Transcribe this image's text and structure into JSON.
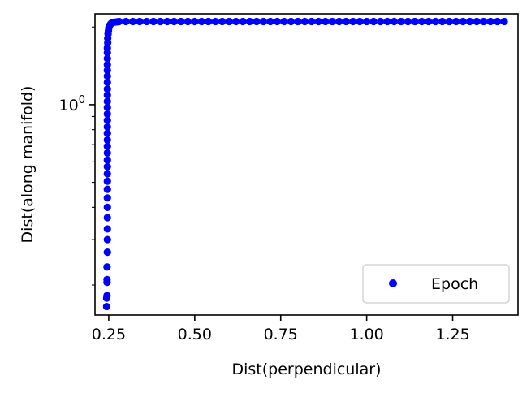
{
  "chart_data": {
    "type": "scatter",
    "xlabel": "Dist(perpendicular)",
    "ylabel": "Dist(along manifold)",
    "xlim": [
      0.21,
      1.44
    ],
    "ylim": [
      0.153,
      2.25
    ],
    "y_scale": "log",
    "x_ticks": [
      0.25,
      0.5,
      0.75,
      1.0,
      1.25
    ],
    "x_tick_labels": [
      "0.25",
      "0.50",
      "0.75",
      "1.00",
      "1.25"
    ],
    "y_major_ticks": [
      1.0
    ],
    "y_major_tick_base": "10",
    "y_major_tick_exponent": "0",
    "y_minor_ticks": [
      0.2,
      0.3,
      0.4,
      0.5,
      0.6,
      0.7,
      0.8,
      0.9,
      2.0
    ],
    "grid": false,
    "legend_position": "lower-right",
    "series": [
      {
        "name": "Epoch",
        "color": "#0000ff",
        "marker": "circle",
        "points": [
          [
            0.244,
            0.165
          ],
          [
            0.244,
            0.178
          ],
          [
            0.245,
            0.182
          ],
          [
            0.245,
            0.205
          ],
          [
            0.245,
            0.21
          ],
          [
            0.245,
            0.235
          ],
          [
            0.246,
            0.268
          ],
          [
            0.246,
            0.3
          ],
          [
            0.246,
            0.33
          ],
          [
            0.246,
            0.365
          ],
          [
            0.246,
            0.4
          ],
          [
            0.246,
            0.435
          ],
          [
            0.246,
            0.47
          ],
          [
            0.246,
            0.505
          ],
          [
            0.246,
            0.54
          ],
          [
            0.246,
            0.575
          ],
          [
            0.246,
            0.61
          ],
          [
            0.246,
            0.65
          ],
          [
            0.246,
            0.69
          ],
          [
            0.246,
            0.73
          ],
          [
            0.246,
            0.775
          ],
          [
            0.246,
            0.82
          ],
          [
            0.246,
            0.87
          ],
          [
            0.246,
            0.92
          ],
          [
            0.246,
            0.975
          ],
          [
            0.246,
            1.03
          ],
          [
            0.246,
            1.09
          ],
          [
            0.246,
            1.15
          ],
          [
            0.246,
            1.22
          ],
          [
            0.246,
            1.29
          ],
          [
            0.246,
            1.36
          ],
          [
            0.246,
            1.43
          ],
          [
            0.246,
            1.51
          ],
          [
            0.246,
            1.59
          ],
          [
            0.246,
            1.66
          ],
          [
            0.247,
            1.74
          ],
          [
            0.247,
            1.81
          ],
          [
            0.248,
            1.88
          ],
          [
            0.249,
            1.93
          ],
          [
            0.25,
            1.98
          ],
          [
            0.252,
            2.02
          ],
          [
            0.255,
            2.05
          ],
          [
            0.258,
            2.07
          ],
          [
            0.262,
            2.08
          ],
          [
            0.268,
            2.09
          ],
          [
            0.275,
            2.095
          ],
          [
            0.28,
            2.1
          ],
          [
            0.3,
            2.1
          ],
          [
            0.32,
            2.1
          ],
          [
            0.34,
            2.1
          ],
          [
            0.36,
            2.1
          ],
          [
            0.38,
            2.1
          ],
          [
            0.4,
            2.1
          ],
          [
            0.42,
            2.1
          ],
          [
            0.44,
            2.1
          ],
          [
            0.46,
            2.1
          ],
          [
            0.48,
            2.1
          ],
          [
            0.5,
            2.1
          ],
          [
            0.52,
            2.1
          ],
          [
            0.54,
            2.1
          ],
          [
            0.56,
            2.1
          ],
          [
            0.58,
            2.1
          ],
          [
            0.6,
            2.1
          ],
          [
            0.62,
            2.1
          ],
          [
            0.64,
            2.1
          ],
          [
            0.66,
            2.1
          ],
          [
            0.68,
            2.1
          ],
          [
            0.7,
            2.1
          ],
          [
            0.72,
            2.1
          ],
          [
            0.74,
            2.1
          ],
          [
            0.76,
            2.1
          ],
          [
            0.78,
            2.1
          ],
          [
            0.8,
            2.1
          ],
          [
            0.82,
            2.1
          ],
          [
            0.84,
            2.1
          ],
          [
            0.86,
            2.1
          ],
          [
            0.88,
            2.1
          ],
          [
            0.9,
            2.1
          ],
          [
            0.92,
            2.1
          ],
          [
            0.94,
            2.1
          ],
          [
            0.96,
            2.1
          ],
          [
            0.98,
            2.1
          ],
          [
            1.0,
            2.1
          ],
          [
            1.02,
            2.1
          ],
          [
            1.04,
            2.1
          ],
          [
            1.06,
            2.1
          ],
          [
            1.08,
            2.1
          ],
          [
            1.1,
            2.1
          ],
          [
            1.12,
            2.1
          ],
          [
            1.14,
            2.1
          ],
          [
            1.16,
            2.1
          ],
          [
            1.18,
            2.1
          ],
          [
            1.2,
            2.1
          ],
          [
            1.22,
            2.1
          ],
          [
            1.24,
            2.1
          ],
          [
            1.26,
            2.1
          ],
          [
            1.28,
            2.1
          ],
          [
            1.3,
            2.1
          ],
          [
            1.32,
            2.1
          ],
          [
            1.34,
            2.1
          ],
          [
            1.36,
            2.1
          ],
          [
            1.38,
            2.1
          ],
          [
            1.4,
            2.1
          ]
        ]
      }
    ]
  }
}
